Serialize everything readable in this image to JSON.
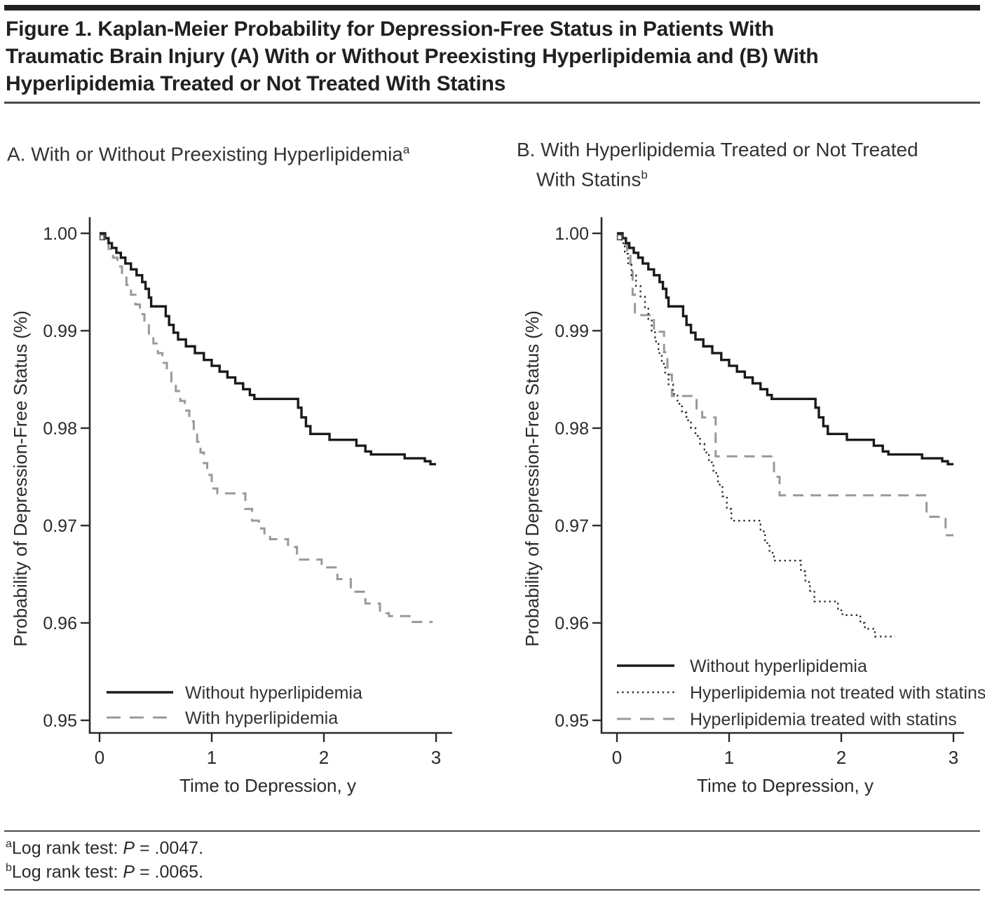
{
  "figure": {
    "title": "Figure 1. Kaplan-Meier Probability for Depression-Free Status in Patients With Traumatic Brain Injury (A) With or Without Preexisting Hyperlipidemia and (B) With Hyperlipidemia Treated or Not Treated With Statins",
    "title_lines": [
      "Figure 1. Kaplan-Meier Probability for Depression-Free Status in Patients With",
      "Traumatic Brain Injury (A) With or Without Preexisting Hyperlipidemia and (B) With",
      "Hyperlipidemia Treated or Not Treated With Statins"
    ]
  },
  "colors": {
    "black_curve": "#1a1a1a",
    "gray_curve": "#999999",
    "dotted_curve": "#2b2b2b",
    "axis": "#2b2b2b",
    "bar": "#231f20"
  },
  "chart_data": [
    {
      "type": "line",
      "panel": "A",
      "title": "A. With or Without Preexisting Hyperlipidemia",
      "title_sup": "a",
      "xlabel": "Time to Depression, y",
      "ylabel": "Probability of Depression-Free Status (%)",
      "xlim": [
        0,
        3
      ],
      "ylim": [
        0.95,
        1.0
      ],
      "x_ticks": [
        0,
        1,
        2,
        3
      ],
      "y_ticks": [
        1.0,
        0.99,
        0.98,
        0.97,
        0.96,
        0.95
      ],
      "y_tick_labels": [
        "1.00",
        "0.99",
        "0.98",
        "0.97",
        "0.96",
        "0.95"
      ],
      "grid": false,
      "legend_position": "lower-left-inside",
      "series": [
        {
          "name": "Without hyperlipidemia",
          "line": "solid",
          "color": "#1a1a1a",
          "step": true,
          "end_x": 3.0,
          "points": [
            [
              0,
              1
            ],
            [
              0.05,
              0.9995
            ],
            [
              0.08,
              0.999
            ],
            [
              0.11,
              0.9985
            ],
            [
              0.15,
              0.998
            ],
            [
              0.19,
              0.9975
            ],
            [
              0.23,
              0.9969
            ],
            [
              0.28,
              0.9963
            ],
            [
              0.33,
              0.9957
            ],
            [
              0.38,
              0.995
            ],
            [
              0.41,
              0.9943
            ],
            [
              0.44,
              0.9934
            ],
            [
              0.46,
              0.9925
            ],
            [
              0.59,
              0.9915
            ],
            [
              0.62,
              0.9906
            ],
            [
              0.66,
              0.9898
            ],
            [
              0.7,
              0.9891
            ],
            [
              0.77,
              0.9884
            ],
            [
              0.85,
              0.9877
            ],
            [
              0.93,
              0.987
            ],
            [
              1,
              0.9864
            ],
            [
              1.07,
              0.9858
            ],
            [
              1.14,
              0.9852
            ],
            [
              1.21,
              0.9846
            ],
            [
              1.28,
              0.984
            ],
            [
              1.34,
              0.9834
            ],
            [
              1.38,
              0.983
            ],
            [
              1.77,
              0.9821
            ],
            [
              1.8,
              0.9811
            ],
            [
              1.84,
              0.9802
            ],
            [
              1.88,
              0.9794
            ],
            [
              2.05,
              0.9788
            ],
            [
              2.29,
              0.9782
            ],
            [
              2.37,
              0.9776
            ],
            [
              2.42,
              0.9773
            ],
            [
              2.72,
              0.9769
            ],
            [
              2.9,
              0.9766
            ],
            [
              2.95,
              0.9763
            ]
          ]
        },
        {
          "name": "With hyperlipidemia",
          "line": "dashed",
          "color": "#999999",
          "step": true,
          "end_x": 2.97,
          "points": [
            [
              0,
              1
            ],
            [
              0.04,
              0.9992
            ],
            [
              0.08,
              0.9984
            ],
            [
              0.12,
              0.9975
            ],
            [
              0.16,
              0.9966
            ],
            [
              0.2,
              0.9956
            ],
            [
              0.24,
              0.9947
            ],
            [
              0.28,
              0.9937
            ],
            [
              0.32,
              0.9927
            ],
            [
              0.36,
              0.9917
            ],
            [
              0.4,
              0.9907
            ],
            [
              0.44,
              0.9897
            ],
            [
              0.48,
              0.9887
            ],
            [
              0.52,
              0.9877
            ],
            [
              0.56,
              0.9867
            ],
            [
              0.6,
              0.9857
            ],
            [
              0.64,
              0.9847
            ],
            [
              0.68,
              0.9838
            ],
            [
              0.72,
              0.9828
            ],
            [
              0.76,
              0.9818
            ],
            [
              0.8,
              0.9807
            ],
            [
              0.84,
              0.9797
            ],
            [
              0.87,
              0.9786
            ],
            [
              0.9,
              0.9775
            ],
            [
              0.93,
              0.9764
            ],
            [
              0.96,
              0.9752
            ],
            [
              1,
              0.9738
            ],
            [
              1.05,
              0.9733
            ],
            [
              1.3,
              0.9717
            ],
            [
              1.36,
              0.9705
            ],
            [
              1.42,
              0.9697
            ],
            [
              1.47,
              0.969
            ],
            [
              1.52,
              0.9686
            ],
            [
              1.68,
              0.9678
            ],
            [
              1.76,
              0.9665
            ],
            [
              1.98,
              0.9657
            ],
            [
              2.12,
              0.9645
            ],
            [
              2.24,
              0.9632
            ],
            [
              2.37,
              0.962
            ],
            [
              2.5,
              0.961
            ],
            [
              2.58,
              0.9607
            ],
            [
              2.78,
              0.9601
            ]
          ]
        }
      ]
    },
    {
      "type": "line",
      "panel": "B",
      "title": "B. With Hyperlipidemia Treated or Not Treated With Statins",
      "title_line1": "B. With Hyperlipidemia Treated or Not Treated",
      "title_line2": "With Statins",
      "title_sup": "b",
      "xlabel": "Time to Depression, y",
      "ylabel": "Probability of Depression-Free Status (%)",
      "xlim": [
        0,
        3
      ],
      "ylim": [
        0.95,
        1.0
      ],
      "x_ticks": [
        0,
        1,
        2,
        3
      ],
      "y_ticks": [
        1.0,
        0.99,
        0.98,
        0.97,
        0.96,
        0.95
      ],
      "y_tick_labels": [
        "1.00",
        "0.99",
        "0.98",
        "0.97",
        "0.96",
        "0.95"
      ],
      "grid": false,
      "legend_position": "lower-left-inside",
      "series": [
        {
          "name": "Without hyperlipidemia",
          "line": "solid",
          "color": "#1a1a1a",
          "step": true,
          "end_x": 3.0,
          "points": [
            [
              0,
              1
            ],
            [
              0.05,
              0.9995
            ],
            [
              0.08,
              0.999
            ],
            [
              0.11,
              0.9985
            ],
            [
              0.15,
              0.998
            ],
            [
              0.19,
              0.9975
            ],
            [
              0.23,
              0.9969
            ],
            [
              0.28,
              0.9963
            ],
            [
              0.33,
              0.9957
            ],
            [
              0.38,
              0.995
            ],
            [
              0.41,
              0.9943
            ],
            [
              0.44,
              0.9934
            ],
            [
              0.46,
              0.9925
            ],
            [
              0.59,
              0.9915
            ],
            [
              0.62,
              0.9906
            ],
            [
              0.66,
              0.9898
            ],
            [
              0.7,
              0.9891
            ],
            [
              0.77,
              0.9884
            ],
            [
              0.85,
              0.9877
            ],
            [
              0.93,
              0.987
            ],
            [
              1,
              0.9864
            ],
            [
              1.07,
              0.9858
            ],
            [
              1.14,
              0.9852
            ],
            [
              1.21,
              0.9846
            ],
            [
              1.28,
              0.984
            ],
            [
              1.34,
              0.9834
            ],
            [
              1.38,
              0.983
            ],
            [
              1.77,
              0.9821
            ],
            [
              1.8,
              0.9811
            ],
            [
              1.84,
              0.9802
            ],
            [
              1.88,
              0.9794
            ],
            [
              2.05,
              0.9788
            ],
            [
              2.29,
              0.9782
            ],
            [
              2.37,
              0.9776
            ],
            [
              2.42,
              0.9773
            ],
            [
              2.72,
              0.9769
            ],
            [
              2.9,
              0.9766
            ],
            [
              2.95,
              0.9763
            ]
          ]
        },
        {
          "name": "Hyperlipidemia not treated with statins",
          "line": "dotted",
          "color": "#2b2b2b",
          "step": true,
          "end_x": 2.48,
          "points": [
            [
              0,
              1
            ],
            [
              0.04,
              0.999
            ],
            [
              0.07,
              0.9979
            ],
            [
              0.1,
              0.9968
            ],
            [
              0.13,
              0.9957
            ],
            [
              0.17,
              0.9946
            ],
            [
              0.21,
              0.9935
            ],
            [
              0.25,
              0.9924
            ],
            [
              0.28,
              0.9912
            ],
            [
              0.31,
              0.99
            ],
            [
              0.34,
              0.9889
            ],
            [
              0.37,
              0.9877
            ],
            [
              0.4,
              0.9866
            ],
            [
              0.43,
              0.9855
            ],
            [
              0.46,
              0.9845
            ],
            [
              0.5,
              0.9835
            ],
            [
              0.54,
              0.9825
            ],
            [
              0.58,
              0.9816
            ],
            [
              0.62,
              0.9808
            ],
            [
              0.66,
              0.98
            ],
            [
              0.7,
              0.9792
            ],
            [
              0.74,
              0.9784
            ],
            [
              0.78,
              0.9775
            ],
            [
              0.82,
              0.9765
            ],
            [
              0.86,
              0.9754
            ],
            [
              0.9,
              0.9742
            ],
            [
              0.94,
              0.973
            ],
            [
              0.98,
              0.9717
            ],
            [
              1.02,
              0.9705
            ],
            [
              1.28,
              0.9694
            ],
            [
              1.32,
              0.9682
            ],
            [
              1.36,
              0.9672
            ],
            [
              1.4,
              0.9664
            ],
            [
              1.64,
              0.9653
            ],
            [
              1.68,
              0.9642
            ],
            [
              1.72,
              0.9633
            ],
            [
              1.76,
              0.9622
            ],
            [
              1.97,
              0.9613
            ],
            [
              2.01,
              0.9608
            ],
            [
              2.17,
              0.96
            ],
            [
              2.21,
              0.9594
            ],
            [
              2.3,
              0.9586
            ]
          ]
        },
        {
          "name": "Hyperlipidemia treated with statins",
          "line": "dashed",
          "color": "#999999",
          "step": true,
          "end_x": 3.0,
          "points": [
            [
              0,
              1
            ],
            [
              0.05,
              0.9989
            ],
            [
              0.09,
              0.9977
            ],
            [
              0.12,
              0.9961
            ],
            [
              0.14,
              0.9937
            ],
            [
              0.16,
              0.9916
            ],
            [
              0.33,
              0.9899
            ],
            [
              0.42,
              0.9878
            ],
            [
              0.45,
              0.9855
            ],
            [
              0.49,
              0.9833
            ],
            [
              0.71,
              0.9819
            ],
            [
              0.76,
              0.9811
            ],
            [
              0.88,
              0.9771
            ],
            [
              1.4,
              0.975
            ],
            [
              1.45,
              0.9731
            ],
            [
              2.76,
              0.9709
            ],
            [
              2.93,
              0.969
            ]
          ]
        }
      ]
    }
  ],
  "footnotes": [
    {
      "sup": "a",
      "label": "Log rank test: ",
      "p_symbol": "P",
      "value": " = .0047."
    },
    {
      "sup": "b",
      "label": "Log rank test: ",
      "p_symbol": "P",
      "value": " = .0065."
    }
  ]
}
